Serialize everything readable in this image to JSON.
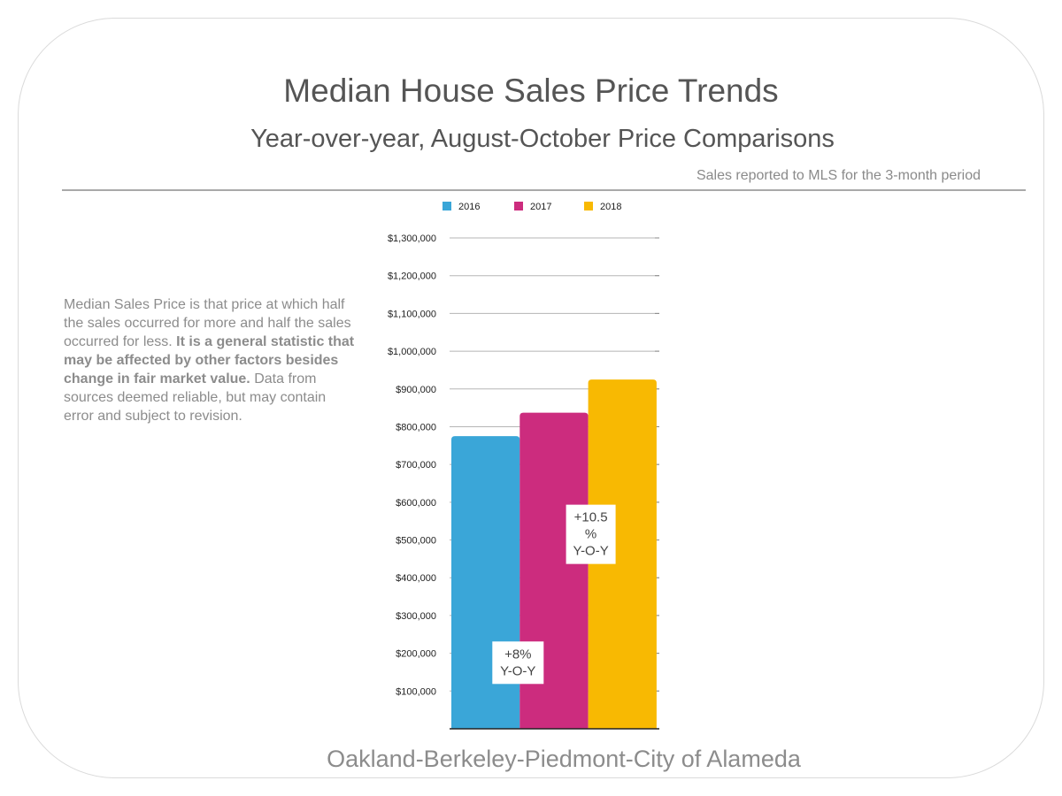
{
  "header": {
    "title": "Median House Sales Price Trends",
    "subtitle": "Year-over-year, August-October Price Comparisons",
    "note": "Sales reported to MLS for the 3-month period"
  },
  "description": {
    "part1": "Median Sales Price is that price at which half the sales occurred for more and half the sales occurred for less.  ",
    "part2_bold": "It is a general statistic that may be affected by other factors besides change in fair market value.",
    "part3": "  Data from sources deemed reliable, but may contain error and subject to revision."
  },
  "footer": {
    "region": "Oakland-Berkeley-Piedmont-City of Alameda"
  },
  "chart_data": {
    "type": "bar",
    "title": "",
    "xlabel": "",
    "ylabel": "",
    "categories": [
      ""
    ],
    "series": [
      {
        "name": "2016",
        "values": [
          775000
        ],
        "color": "#3aa6d8"
      },
      {
        "name": "2017",
        "values": [
          837000
        ],
        "color": "#cc2c7e"
      },
      {
        "name": "2018",
        "values": [
          925000
        ],
        "color": "#f8b902"
      }
    ],
    "ylim": [
      0,
      1300000
    ],
    "yticks": [
      {
        "value": 100000,
        "label": "$100,000"
      },
      {
        "value": 200000,
        "label": "$200,000"
      },
      {
        "value": 300000,
        "label": "$300,000"
      },
      {
        "value": 400000,
        "label": "$400,000"
      },
      {
        "value": 500000,
        "label": "$500,000"
      },
      {
        "value": 600000,
        "label": "$600,000"
      },
      {
        "value": 700000,
        "label": "$700,000"
      },
      {
        "value": 800000,
        "label": "$800,000"
      },
      {
        "value": 900000,
        "label": "$900,000"
      },
      {
        "value": 1000000,
        "label": "$1,000,000"
      },
      {
        "value": 1100000,
        "label": "$1,100,000"
      },
      {
        "value": 1200000,
        "label": "$1,200,000"
      },
      {
        "value": 1300000,
        "label": "$1,300,000"
      }
    ],
    "grid": true,
    "legend": "top",
    "annotations": [
      {
        "lines": [
          "+8%",
          "Y-O-Y"
        ],
        "y": 175000,
        "series": "2017"
      },
      {
        "lines": [
          "+10.5",
          "%",
          "Y-O-Y"
        ],
        "y": 515000,
        "series": "2018"
      }
    ]
  }
}
